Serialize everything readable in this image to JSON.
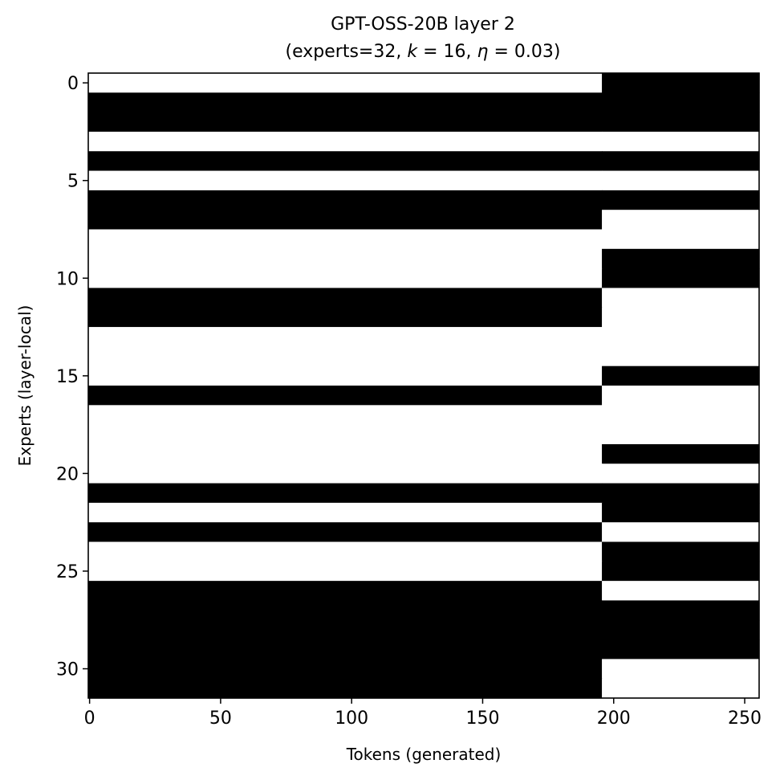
{
  "chart_data": {
    "type": "heatmap",
    "title_line1": "GPT-OSS-20B layer 2",
    "title_line2_prefix": "(experts=32, ",
    "title_k_symbol": "k",
    "title_k_value": " = 16, ",
    "title_eta_symbol": "η",
    "title_eta_value": " = 0.03)",
    "xlabel": "Tokens (generated)",
    "ylabel": "Experts (layer-local)",
    "xlim": [
      -0.5,
      255.5
    ],
    "ylim": [
      31.5,
      -0.5
    ],
    "x_ticks": [
      0,
      50,
      100,
      150,
      200,
      250
    ],
    "y_ticks": [
      0,
      5,
      10,
      15,
      20,
      25,
      30
    ],
    "n_experts": 32,
    "n_tokens": 256,
    "switch_token": 196,
    "colormap": {
      "active": "#000000",
      "inactive": "#ffffff"
    },
    "active_before_switch": [
      0,
      1,
      1,
      0,
      1,
      0,
      1,
      1,
      0,
      0,
      0,
      1,
      1,
      0,
      0,
      0,
      1,
      0,
      0,
      0,
      0,
      1,
      0,
      1,
      0,
      0,
      1,
      1,
      1,
      1,
      1,
      1
    ],
    "active_after_switch": [
      1,
      1,
      1,
      0,
      1,
      0,
      1,
      0,
      0,
      1,
      1,
      0,
      0,
      0,
      0,
      1,
      0,
      0,
      0,
      1,
      0,
      1,
      1,
      0,
      1,
      1,
      0,
      1,
      1,
      1,
      0,
      0
    ]
  }
}
